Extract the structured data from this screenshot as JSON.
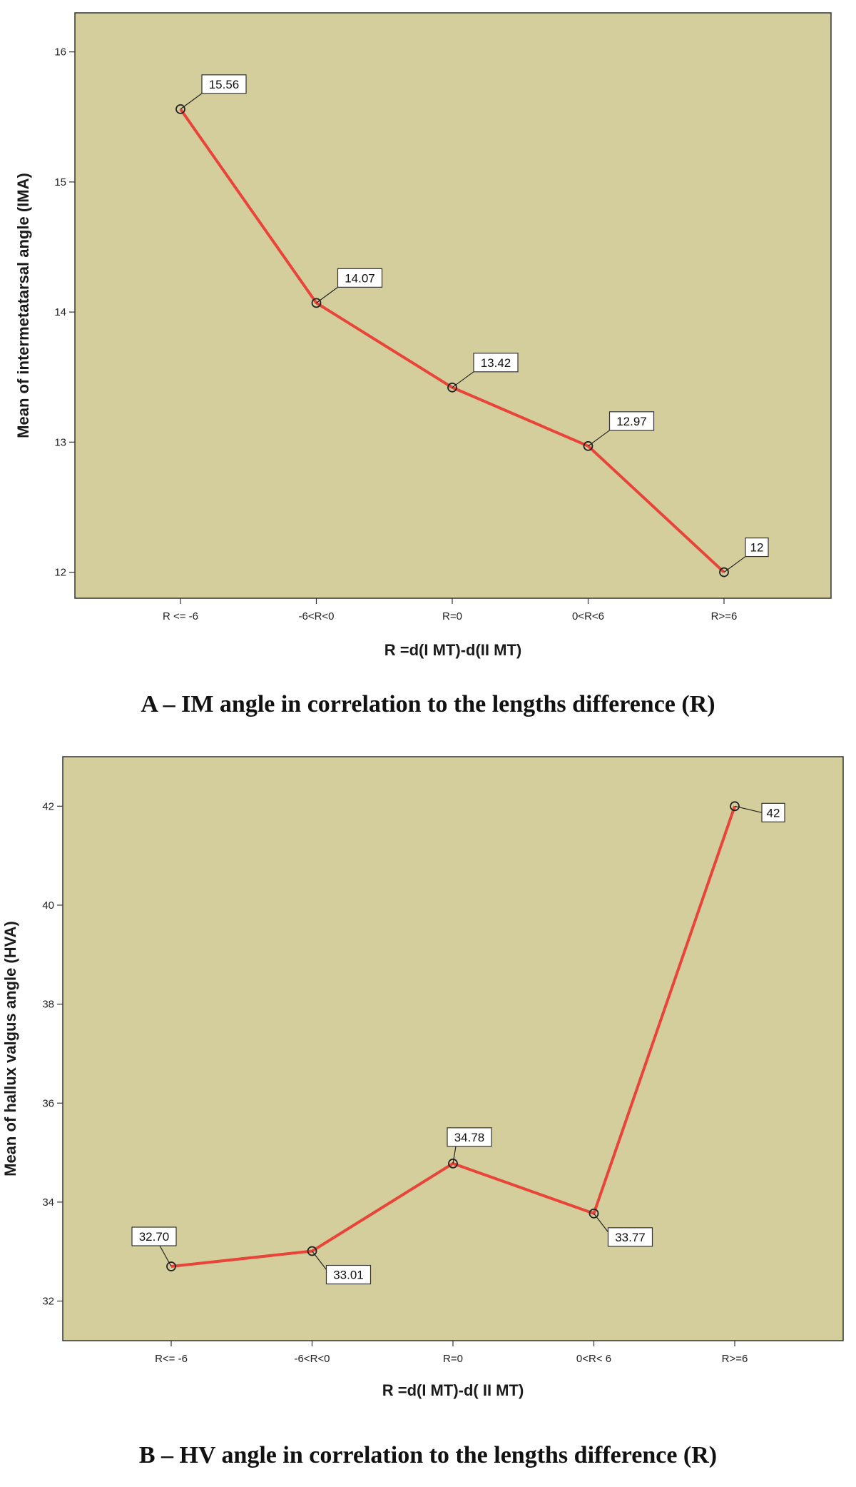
{
  "chart_data": [
    {
      "type": "line",
      "caption": "A – IM angle in correlation to the lengths difference (R)",
      "xlabel": "R =d(I MT)-d(II MT)",
      "ylabel": "Mean of intermetatarsal angle (IMA)",
      "categories": [
        "R <= -6",
        "-6<R<0",
        "R=0",
        "0<R<6",
        "R>=6"
      ],
      "values": [
        15.56,
        14.07,
        13.42,
        12.97,
        12
      ],
      "data_labels": [
        "15.56",
        "14.07",
        "13.42",
        "12.97",
        "12"
      ],
      "label_placement": [
        "upper-right",
        "upper-right",
        "upper-right",
        "upper-right",
        "upper-right"
      ],
      "y_ticks": [
        12,
        13,
        14,
        15,
        16
      ],
      "ylim": [
        11.8,
        16.3
      ],
      "grid": false,
      "plot_background": "#d4ce9c",
      "line_color": "#e8443a"
    },
    {
      "type": "line",
      "caption": "B – HV angle in correlation to the lengths difference (R)",
      "xlabel": "R =d(I MT)-d( II MT)",
      "ylabel": "Mean of hallux valgus angle (HVA)",
      "categories": [
        "R<= -6",
        "-6<R<0",
        "R=0",
        "0<R< 6",
        "R>=6"
      ],
      "values": [
        32.7,
        33.01,
        34.78,
        33.77,
        42
      ],
      "data_labels": [
        "32.70",
        "33.01",
        "34.78",
        "33.77",
        "42"
      ],
      "label_placement": [
        "upper-left",
        "lower-right",
        "above",
        "lower-right",
        "right"
      ],
      "y_ticks": [
        32,
        34,
        36,
        38,
        40,
        42
      ],
      "ylim": [
        31.2,
        43.0
      ],
      "grid": false,
      "plot_background": "#d4ce9c",
      "line_color": "#e8443a"
    }
  ]
}
